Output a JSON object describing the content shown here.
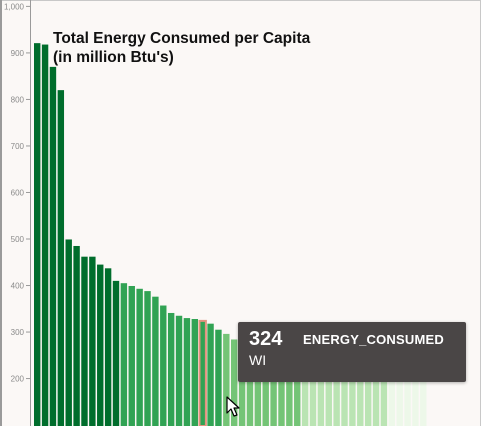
{
  "chart_data": {
    "type": "bar",
    "title_lines": [
      "Total Energy Consumed per Capita",
      "(in million Btu's)"
    ],
    "xlabel": "",
    "ylabel": "",
    "ylim": [
      0,
      1000
    ],
    "yticks": [
      200,
      300,
      400,
      500,
      600,
      700,
      800,
      900,
      "1,000"
    ],
    "grid": false,
    "values": [
      921,
      918,
      870,
      820,
      499,
      485,
      462,
      462,
      445,
      437,
      410,
      405,
      399,
      393,
      388,
      376,
      357,
      341,
      335,
      330,
      328,
      324,
      318,
      305,
      296,
      284,
      280,
      273,
      262,
      258,
      256,
      255,
      250,
      246,
      241,
      232,
      225,
      220,
      218,
      216,
      216,
      215,
      215,
      214,
      215,
      215,
      215,
      215,
      215,
      215
    ],
    "bar_colors": {
      "tier1": "#006d2c",
      "tier2": "#31a354",
      "tier3": "#74c476",
      "tier4": "#bae4b3",
      "tier5": "#edf8e9"
    },
    "highlighted_index": 21,
    "highlight_outline_color": "#e3937f"
  },
  "tooltip": {
    "value": "324",
    "field": "ENERGY_CONSUMED",
    "category": "WI"
  }
}
